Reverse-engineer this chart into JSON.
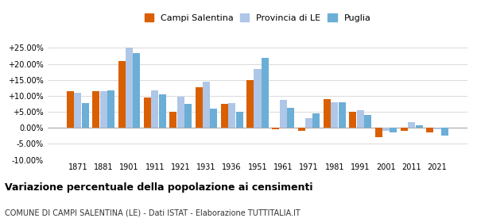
{
  "years": [
    1871,
    1881,
    1901,
    1911,
    1921,
    1931,
    1936,
    1951,
    1961,
    1971,
    1981,
    1991,
    2001,
    2011,
    2021
  ],
  "campi_salentina": [
    11.5,
    11.5,
    21.0,
    9.5,
    5.0,
    12.8,
    7.5,
    15.0,
    -0.5,
    -1.0,
    9.0,
    5.0,
    -3.0,
    -1.0,
    -1.5
  ],
  "provincia_le": [
    11.0,
    11.5,
    25.0,
    11.8,
    9.8,
    14.5,
    7.8,
    18.5,
    8.8,
    3.0,
    8.0,
    5.5,
    -1.0,
    1.8,
    -0.5
  ],
  "puglia": [
    7.8,
    11.8,
    23.5,
    10.5,
    7.5,
    6.0,
    5.0,
    21.8,
    6.2,
    4.5,
    8.0,
    4.0,
    -1.5,
    0.8,
    -2.5
  ],
  "color_campi": "#d95f02",
  "color_provincia": "#aec6e8",
  "color_puglia": "#6baed6",
  "title": "Variazione percentuale della popolazione ai censimenti",
  "subtitle": "COMUNE DI CAMPI SALENTINA (LE) - Dati ISTAT - Elaborazione TUTTITALIA.IT",
  "ylim": [
    -10.0,
    27.5
  ],
  "yticks": [
    -10.0,
    -5.0,
    0.0,
    5.0,
    10.0,
    15.0,
    20.0,
    25.0
  ],
  "background_color": "#ffffff",
  "grid_color": "#dddddd"
}
